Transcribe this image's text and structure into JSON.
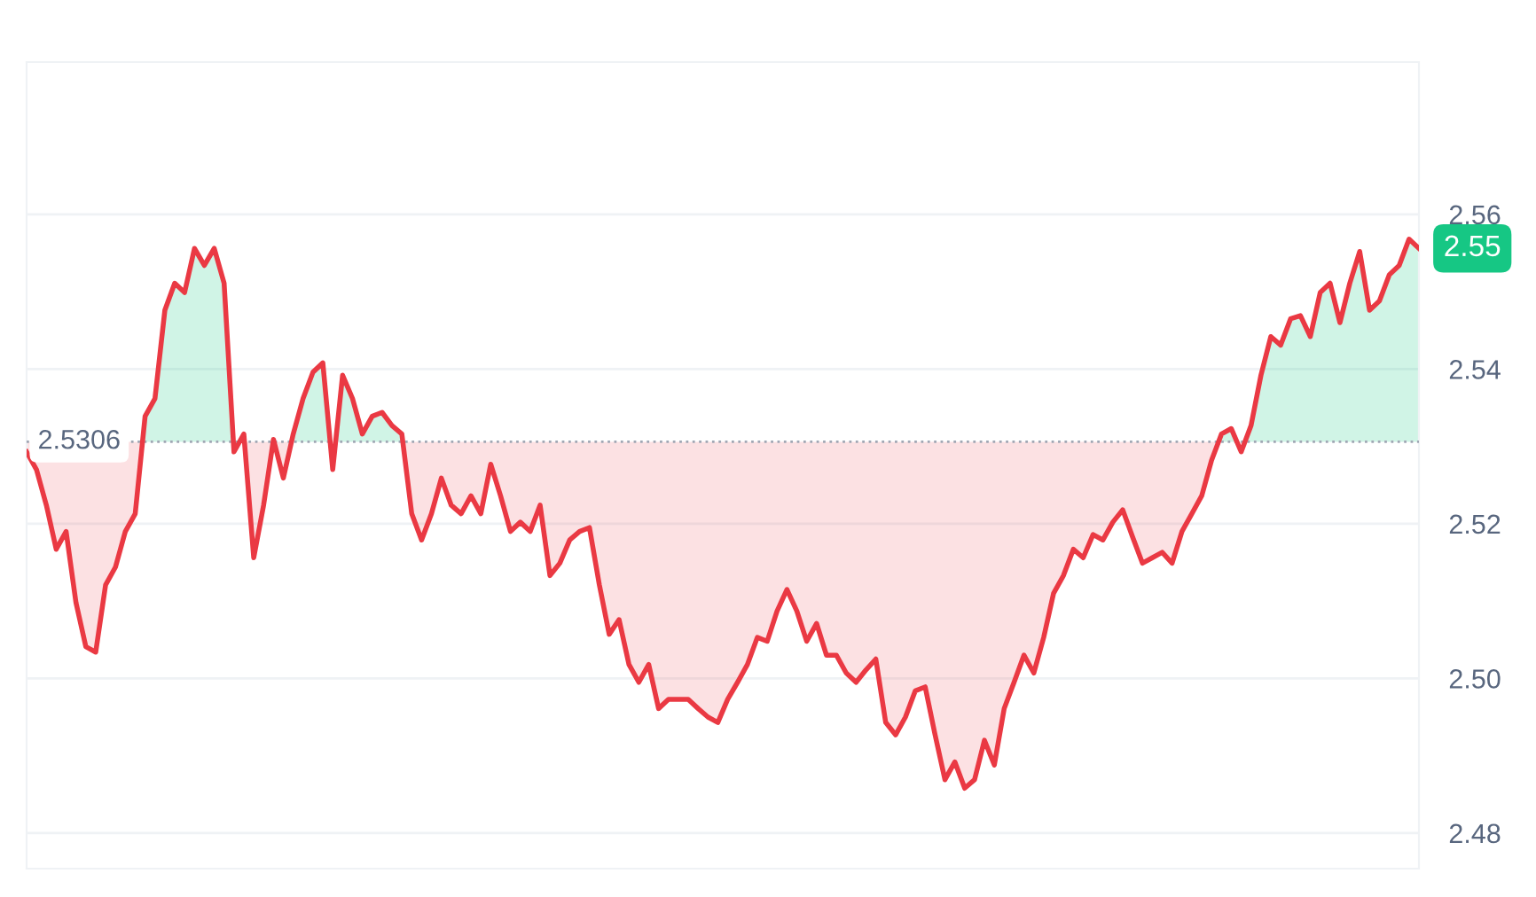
{
  "chart_data": {
    "type": "line",
    "categories": [
      null,
      null,
      null,
      null,
      null,
      null,
      null,
      null,
      null,
      null,
      null,
      null,
      null,
      null,
      null,
      null,
      null,
      null,
      null,
      null,
      null,
      null,
      null,
      null,
      null,
      null,
      null,
      null,
      null,
      null,
      null,
      null,
      null,
      null,
      null,
      null,
      null,
      null,
      null,
      null,
      null,
      null,
      null,
      null,
      null,
      null,
      null,
      null,
      null,
      null,
      null,
      null,
      null,
      null,
      null,
      null,
      null,
      null,
      null,
      null,
      null,
      null,
      null,
      null,
      null,
      null,
      null,
      null,
      null,
      null,
      null,
      null,
      null,
      null,
      null,
      null,
      null,
      null,
      null,
      null,
      null,
      null,
      null,
      null,
      null,
      null,
      null,
      null,
      null,
      null,
      null,
      null,
      null,
      null,
      null,
      null,
      null,
      null,
      null,
      null,
      null,
      null,
      null,
      null,
      null,
      null,
      null,
      null,
      null,
      null,
      null,
      null,
      null,
      null,
      null,
      null,
      null,
      null,
      null,
      null,
      null,
      null,
      null,
      null,
      null,
      null,
      null,
      null,
      null,
      null,
      null,
      null,
      null,
      null,
      null,
      null,
      null,
      null,
      null,
      null,
      null,
      null
    ],
    "series": [
      {
        "color": "#ea3943",
        "values": [
          2.5293,
          2.527,
          2.5224,
          2.5167,
          2.519,
          2.5098,
          2.5041,
          2.5034,
          2.5121,
          2.5144,
          2.519,
          2.5213,
          2.5339,
          2.5362,
          2.5476,
          2.5511,
          2.5499,
          2.5556,
          2.5534,
          2.5556,
          2.5511,
          2.5293,
          2.5316,
          2.5156,
          2.5224,
          2.5309,
          2.5259,
          2.5316,
          2.5362,
          2.5396,
          2.5408,
          2.527,
          2.5392,
          2.5362,
          2.5316,
          2.5339,
          2.5344,
          2.5327,
          2.5316,
          2.5213,
          2.5179,
          2.5213,
          2.5259,
          2.5224,
          2.5213,
          2.5236,
          2.5213,
          2.5277,
          2.5236,
          2.519,
          2.5202,
          2.519,
          2.5224,
          2.5133,
          2.5149,
          2.5179,
          2.519,
          2.5195,
          2.5121,
          2.5057,
          2.5076,
          2.5018,
          2.4995,
          2.5018,
          2.4961,
          2.4973,
          2.4973,
          2.4973,
          2.4961,
          2.495,
          2.4943,
          2.4973,
          2.4995,
          2.5018,
          2.5053,
          2.5048,
          2.5087,
          2.5115,
          2.5087,
          2.5048,
          2.5071,
          2.503,
          2.503,
          2.5007,
          2.4995,
          2.5011,
          2.5025,
          2.4943,
          2.4927,
          2.495,
          2.4984,
          2.4989,
          2.4927,
          2.4869,
          2.4892,
          2.4858,
          2.4869,
          2.492,
          2.4888,
          2.4961,
          2.4995,
          2.503,
          2.5007,
          2.5053,
          2.511,
          2.5133,
          2.5167,
          2.5156,
          2.5186,
          2.5179,
          2.5202,
          2.5218,
          2.5183,
          2.5149,
          2.5156,
          2.5163,
          2.5149,
          2.519,
          2.5213,
          2.5236,
          2.5282,
          2.5316,
          2.5323,
          2.5293,
          2.5327,
          2.5392,
          2.5442,
          2.5431,
          2.5465,
          2.5469,
          2.5442,
          2.5499,
          2.5511,
          2.546,
          2.5511,
          2.5552,
          2.5476,
          2.5488,
          2.5522,
          2.5534,
          2.5568,
          2.5556
        ]
      }
    ],
    "colors": [
      "#16c784",
      "#ea3943"
    ],
    "ylim": [
      2.4754,
      2.5797
    ],
    "yticks": [
      2.48,
      {
        "value": 2.5,
        "label": "2.50"
      },
      2.52,
      2.54,
      2.56
    ],
    "grid": "y",
    "tick_labels": "y",
    "ref_lines": [
      {
        "axis": "y",
        "value": 2.5306,
        "label": "2.5306",
        "line_style": "dotted",
        "color": "#a0a7b4"
      }
    ],
    "annotations": [
      "2.55"
    ]
  }
}
